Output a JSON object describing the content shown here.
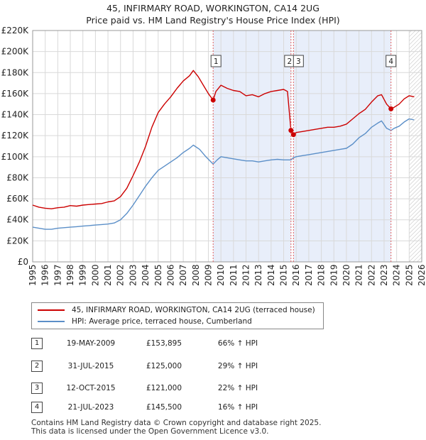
{
  "title_line1": "45, INFIRMARY ROAD, WORKINGTON, CA14 2UG",
  "title_line2": "Price paid vs. HM Land Registry's House Price Index (HPI)",
  "legend": {
    "property_label": "45, INFIRMARY ROAD, WORKINGTON, CA14 2UG (terraced house)",
    "hpi_label": "HPI: Average price, terraced house, Cumberland"
  },
  "colors": {
    "property": "#cc0000",
    "hpi": "#5b8fc8",
    "shade": "#e8eefa",
    "grid": "#d9d9d9",
    "marker_line": "#e06060"
  },
  "sales": [
    {
      "num": "1",
      "date": "19-MAY-2009",
      "price": "£153,895",
      "hpi": "66% ↑ HPI"
    },
    {
      "num": "2",
      "date": "31-JUL-2015",
      "price": "£125,000",
      "hpi": "29% ↑ HPI"
    },
    {
      "num": "3",
      "date": "12-OCT-2015",
      "price": "£121,000",
      "hpi": "22% ↑ HPI"
    },
    {
      "num": "4",
      "date": "21-JUL-2023",
      "price": "£145,500",
      "hpi": "16% ↑ HPI"
    }
  ],
  "footer_line1": "Contains HM Land Registry data © Crown copyright and database right 2025.",
  "footer_line2": "This data is licensed under the Open Government Licence v3.0.",
  "chart_data": {
    "type": "line",
    "title": "45, INFIRMARY ROAD, WORKINGTON, CA14 2UG",
    "subtitle": "Price paid vs. HM Land Registry's House Price Index (HPI)",
    "xlim": [
      1995,
      2026
    ],
    "ylim": [
      0,
      220000
    ],
    "x_ticks": [
      1995,
      1996,
      1997,
      1998,
      1999,
      2000,
      2001,
      2002,
      2003,
      2004,
      2005,
      2006,
      2007,
      2008,
      2009,
      2010,
      2011,
      2012,
      2013,
      2014,
      2015,
      2016,
      2017,
      2018,
      2019,
      2020,
      2021,
      2022,
      2023,
      2024,
      2025,
      2026
    ],
    "y_ticks": [
      0,
      20000,
      40000,
      60000,
      80000,
      100000,
      120000,
      140000,
      160000,
      180000,
      200000,
      220000
    ],
    "y_tick_labels": [
      "£0",
      "£20K",
      "£40K",
      "£60K",
      "£80K",
      "£100K",
      "£120K",
      "£140K",
      "£160K",
      "£180K",
      "£200K",
      "£220K"
    ],
    "shaded_regions": [
      [
        2009.38,
        2015.58
      ],
      [
        2015.78,
        2023.55
      ]
    ],
    "hatched_from": 2025.0,
    "series": [
      {
        "name": "45, INFIRMARY ROAD, WORKINGTON, CA14 2UG (terraced house)",
        "points": [
          [
            1995.0,
            54000
          ],
          [
            1995.5,
            52000
          ],
          [
            1996.0,
            51000
          ],
          [
            1996.5,
            50500
          ],
          [
            1997.0,
            51500
          ],
          [
            1997.5,
            52000
          ],
          [
            1998.0,
            53500
          ],
          [
            1998.5,
            53000
          ],
          [
            1999.0,
            54000
          ],
          [
            1999.5,
            54500
          ],
          [
            2000.0,
            55000
          ],
          [
            2000.5,
            55500
          ],
          [
            2001.0,
            57000
          ],
          [
            2001.5,
            58000
          ],
          [
            2002.0,
            62000
          ],
          [
            2002.5,
            70000
          ],
          [
            2003.0,
            82000
          ],
          [
            2003.5,
            95000
          ],
          [
            2004.0,
            110000
          ],
          [
            2004.5,
            128000
          ],
          [
            2005.0,
            142000
          ],
          [
            2005.5,
            150000
          ],
          [
            2006.0,
            157000
          ],
          [
            2006.5,
            165000
          ],
          [
            2007.0,
            172000
          ],
          [
            2007.5,
            177000
          ],
          [
            2007.8,
            182000
          ],
          [
            2008.2,
            176000
          ],
          [
            2008.6,
            168000
          ],
          [
            2009.0,
            160000
          ],
          [
            2009.38,
            153895
          ],
          [
            2009.6,
            162000
          ],
          [
            2010.0,
            168000
          ],
          [
            2010.5,
            165000
          ],
          [
            2011.0,
            163000
          ],
          [
            2011.5,
            162000
          ],
          [
            2012.0,
            158000
          ],
          [
            2012.5,
            159000
          ],
          [
            2013.0,
            157000
          ],
          [
            2013.5,
            160000
          ],
          [
            2014.0,
            162000
          ],
          [
            2014.5,
            163000
          ],
          [
            2015.0,
            164000
          ],
          [
            2015.3,
            162000
          ],
          [
            2015.58,
            125000
          ],
          [
            2015.78,
            121000
          ],
          [
            2016.0,
            123000
          ],
          [
            2016.5,
            124000
          ],
          [
            2017.0,
            125000
          ],
          [
            2017.5,
            126000
          ],
          [
            2018.0,
            127000
          ],
          [
            2018.5,
            128000
          ],
          [
            2019.0,
            128000
          ],
          [
            2019.5,
            129000
          ],
          [
            2020.0,
            131000
          ],
          [
            2020.5,
            136000
          ],
          [
            2021.0,
            141000
          ],
          [
            2021.5,
            145000
          ],
          [
            2022.0,
            152000
          ],
          [
            2022.5,
            158000
          ],
          [
            2022.8,
            159000
          ],
          [
            2023.2,
            150000
          ],
          [
            2023.55,
            145500
          ],
          [
            2023.8,
            147000
          ],
          [
            2024.2,
            150000
          ],
          [
            2024.6,
            155000
          ],
          [
            2025.0,
            158000
          ],
          [
            2025.4,
            157000
          ]
        ]
      },
      {
        "name": "HPI: Average price, terraced house, Cumberland",
        "points": [
          [
            1995.0,
            33000
          ],
          [
            1995.5,
            32000
          ],
          [
            1996.0,
            31000
          ],
          [
            1996.5,
            31000
          ],
          [
            1997.0,
            32000
          ],
          [
            1997.5,
            32500
          ],
          [
            1998.0,
            33000
          ],
          [
            1998.5,
            33500
          ],
          [
            1999.0,
            34000
          ],
          [
            1999.5,
            34500
          ],
          [
            2000.0,
            35000
          ],
          [
            2000.5,
            35500
          ],
          [
            2001.0,
            36000
          ],
          [
            2001.5,
            37000
          ],
          [
            2002.0,
            40000
          ],
          [
            2002.5,
            46000
          ],
          [
            2003.0,
            54000
          ],
          [
            2003.5,
            63000
          ],
          [
            2004.0,
            72000
          ],
          [
            2004.5,
            80000
          ],
          [
            2005.0,
            87000
          ],
          [
            2005.5,
            91000
          ],
          [
            2006.0,
            95000
          ],
          [
            2006.5,
            99000
          ],
          [
            2007.0,
            104000
          ],
          [
            2007.5,
            108000
          ],
          [
            2007.8,
            111000
          ],
          [
            2008.3,
            107000
          ],
          [
            2008.8,
            100000
          ],
          [
            2009.38,
            93000
          ],
          [
            2009.7,
            97000
          ],
          [
            2010.0,
            100000
          ],
          [
            2010.5,
            99000
          ],
          [
            2011.0,
            98000
          ],
          [
            2011.5,
            97000
          ],
          [
            2012.0,
            96000
          ],
          [
            2012.5,
            96000
          ],
          [
            2013.0,
            95000
          ],
          [
            2013.5,
            96000
          ],
          [
            2014.0,
            97000
          ],
          [
            2014.5,
            97500
          ],
          [
            2015.0,
            97000
          ],
          [
            2015.58,
            97000
          ],
          [
            2015.78,
            99000
          ],
          [
            2016.0,
            100000
          ],
          [
            2016.5,
            101000
          ],
          [
            2017.0,
            102000
          ],
          [
            2017.5,
            103000
          ],
          [
            2018.0,
            104000
          ],
          [
            2018.5,
            105000
          ],
          [
            2019.0,
            106000
          ],
          [
            2019.5,
            107000
          ],
          [
            2020.0,
            108000
          ],
          [
            2020.5,
            112000
          ],
          [
            2021.0,
            118000
          ],
          [
            2021.5,
            122000
          ],
          [
            2022.0,
            128000
          ],
          [
            2022.5,
            132000
          ],
          [
            2022.8,
            134000
          ],
          [
            2023.2,
            127000
          ],
          [
            2023.55,
            125000
          ],
          [
            2023.8,
            127000
          ],
          [
            2024.2,
            129000
          ],
          [
            2024.6,
            133000
          ],
          [
            2025.0,
            136000
          ],
          [
            2025.4,
            135000
          ]
        ]
      }
    ],
    "sale_points": [
      {
        "label": "1",
        "x": 2009.38,
        "y": 153895
      },
      {
        "label": "2",
        "x": 2015.58,
        "y": 125000
      },
      {
        "label": "3",
        "x": 2015.78,
        "y": 121000
      },
      {
        "label": "4",
        "x": 2023.55,
        "y": 145500
      }
    ]
  }
}
